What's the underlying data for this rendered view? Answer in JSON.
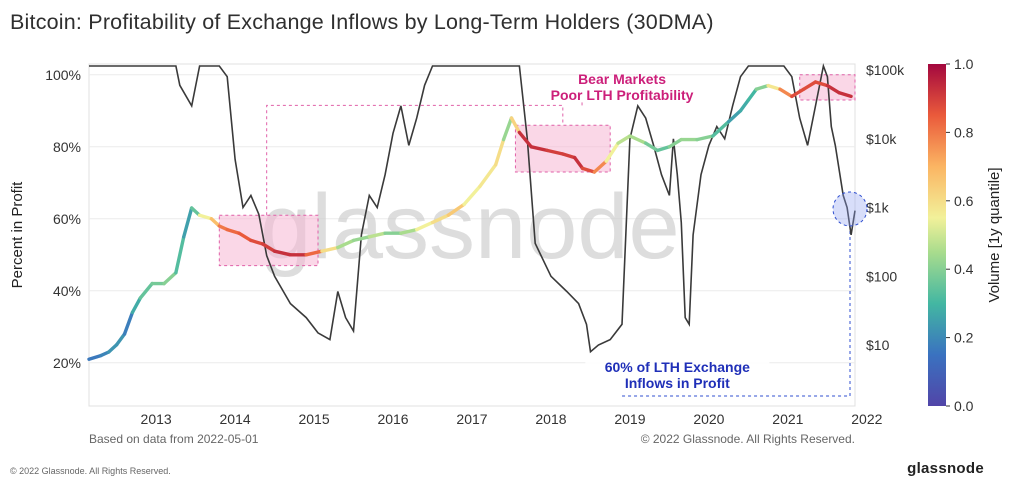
{
  "chart_data": {
    "type": "line",
    "title": "Bitcoin: Profitability of Exchange Inflows by Long-Term Holders (30DMA)",
    "ylabel": "Percent in Profit",
    "y_ticks": [
      "100%",
      "80%",
      "60%",
      "40%",
      "20%"
    ],
    "y_tick_values": [
      100,
      80,
      60,
      40,
      20
    ],
    "ylim": [
      8,
      103
    ],
    "y2_ticks": [
      "$100k",
      "$10k",
      "$1k",
      "$100",
      "$10"
    ],
    "y2_tick_values": [
      100000,
      10000,
      1000,
      100,
      10
    ],
    "y2_scale": "log",
    "x_ticks": [
      "2013",
      "2014",
      "2015",
      "2016",
      "2017",
      "2018",
      "2019",
      "2020",
      "2021",
      "2022"
    ],
    "x_tick_values": [
      2013,
      2014,
      2015,
      2016,
      2017,
      2018,
      2019,
      2020,
      2021,
      2022
    ],
    "xlim": [
      2012.65,
      2022.35
    ],
    "colorbar": {
      "label": "Volume [1y quantile]",
      "ticks": [
        "1.0",
        "0.8",
        "0.6",
        "0.4",
        "0.2",
        "0.0"
      ],
      "tick_values": [
        1.0,
        0.8,
        0.6,
        0.4,
        0.2,
        0.0
      ]
    },
    "series": [
      {
        "name": "",
        "axis": "left",
        "color_by": "Volume [1y quantile]",
        "points": [
          [
            2012.65,
            21,
            0.15
          ],
          [
            2012.8,
            22,
            0.18
          ],
          [
            2012.9,
            23,
            0.2
          ],
          [
            2013.0,
            25,
            0.25
          ],
          [
            2013.1,
            28,
            0.2
          ],
          [
            2013.2,
            34,
            0.15
          ],
          [
            2013.3,
            38,
            0.4
          ],
          [
            2013.45,
            42,
            0.3
          ],
          [
            2013.6,
            42,
            0.45
          ],
          [
            2013.75,
            45,
            0.35
          ],
          [
            2013.85,
            55,
            0.3
          ],
          [
            2013.95,
            63,
            0.2
          ],
          [
            2014.05,
            61,
            0.5
          ],
          [
            2014.2,
            60,
            0.6
          ],
          [
            2014.3,
            58,
            0.75
          ],
          [
            2014.4,
            57,
            0.85
          ],
          [
            2014.55,
            56,
            0.8
          ],
          [
            2014.7,
            54,
            0.9
          ],
          [
            2014.85,
            53,
            0.85
          ],
          [
            2015.0,
            51,
            0.95
          ],
          [
            2015.2,
            50,
            0.9
          ],
          [
            2015.4,
            50,
            0.95
          ],
          [
            2015.6,
            51,
            0.7
          ],
          [
            2015.8,
            52,
            0.5
          ],
          [
            2016.0,
            54,
            0.4
          ],
          [
            2016.2,
            55,
            0.45
          ],
          [
            2016.4,
            56,
            0.5
          ],
          [
            2016.6,
            56,
            0.3
          ],
          [
            2016.8,
            57,
            0.6
          ],
          [
            2017.0,
            59,
            0.5
          ],
          [
            2017.2,
            61,
            0.7
          ],
          [
            2017.4,
            64,
            0.6
          ],
          [
            2017.6,
            69,
            0.5
          ],
          [
            2017.8,
            75,
            0.65
          ],
          [
            2017.9,
            82,
            0.55
          ],
          [
            2018.0,
            88,
            0.3
          ],
          [
            2018.1,
            84,
            0.95
          ],
          [
            2018.25,
            80,
            0.9
          ],
          [
            2018.45,
            79,
            0.95
          ],
          [
            2018.65,
            78,
            0.85
          ],
          [
            2018.8,
            77,
            0.95
          ],
          [
            2018.9,
            74,
            0.9
          ],
          [
            2019.05,
            73,
            0.85
          ],
          [
            2019.2,
            76,
            0.7
          ],
          [
            2019.35,
            81,
            0.4
          ],
          [
            2019.5,
            83,
            0.55
          ],
          [
            2019.7,
            81,
            0.35
          ],
          [
            2019.85,
            79,
            0.4
          ],
          [
            2020.0,
            80,
            0.3
          ],
          [
            2020.15,
            82,
            0.5
          ],
          [
            2020.35,
            82,
            0.35
          ],
          [
            2020.55,
            83,
            0.45
          ],
          [
            2020.75,
            87,
            0.2
          ],
          [
            2020.9,
            90,
            0.3
          ],
          [
            2021.0,
            93,
            0.25
          ],
          [
            2021.1,
            96,
            0.35
          ],
          [
            2021.25,
            97,
            0.45
          ],
          [
            2021.4,
            96,
            0.7
          ],
          [
            2021.55,
            94,
            0.85
          ],
          [
            2021.7,
            96,
            0.9
          ],
          [
            2021.85,
            98,
            0.85
          ],
          [
            2022.0,
            97,
            0.9
          ],
          [
            2022.15,
            95,
            0.95
          ],
          [
            2022.3,
            94,
            0.9
          ]
        ]
      },
      {
        "name": "",
        "axis": "right",
        "color": "#3a3a3a",
        "points": [
          [
            2012.65,
            300000
          ],
          [
            2012.8,
            250000
          ],
          [
            2012.95,
            320000
          ],
          [
            2013.1,
            500000
          ],
          [
            2013.3,
            500000
          ],
          [
            2013.5,
            500000
          ],
          [
            2013.75,
            500000
          ],
          [
            2013.8,
            60000
          ],
          [
            2013.95,
            30000
          ],
          [
            2014.05,
            450000
          ],
          [
            2014.3,
            450000
          ],
          [
            2014.4,
            80000
          ],
          [
            2014.5,
            5000
          ],
          [
            2014.6,
            1000
          ],
          [
            2014.7,
            1500
          ],
          [
            2014.8,
            800
          ],
          [
            2014.9,
            200
          ],
          [
            2015.0,
            100
          ],
          [
            2015.2,
            40
          ],
          [
            2015.4,
            25
          ],
          [
            2015.55,
            15
          ],
          [
            2015.7,
            12
          ],
          [
            2015.8,
            60
          ],
          [
            2015.9,
            25
          ],
          [
            2016.0,
            16
          ],
          [
            2016.1,
            400
          ],
          [
            2016.2,
            1500
          ],
          [
            2016.3,
            1000
          ],
          [
            2016.4,
            3000
          ],
          [
            2016.5,
            12000
          ],
          [
            2016.6,
            30000
          ],
          [
            2016.7,
            8000
          ],
          [
            2016.8,
            20000
          ],
          [
            2016.9,
            60000
          ],
          [
            2017.0,
            150000
          ],
          [
            2017.2,
            300000
          ],
          [
            2017.4,
            450000
          ],
          [
            2017.6,
            500000
          ],
          [
            2017.9,
            500000
          ],
          [
            2018.1,
            400000
          ],
          [
            2018.2,
            10000
          ],
          [
            2018.3,
            300
          ],
          [
            2018.5,
            100
          ],
          [
            2018.7,
            60
          ],
          [
            2018.85,
            40
          ],
          [
            2018.95,
            20
          ],
          [
            2019.0,
            8
          ],
          [
            2019.1,
            10
          ],
          [
            2019.25,
            12
          ],
          [
            2019.4,
            20
          ],
          [
            2019.5,
            10000
          ],
          [
            2019.6,
            30000
          ],
          [
            2019.7,
            20000
          ],
          [
            2019.8,
            8000
          ],
          [
            2019.9,
            3000
          ],
          [
            2020.0,
            1500
          ],
          [
            2020.05,
            10000
          ],
          [
            2020.1,
            3000
          ],
          [
            2020.15,
            600
          ],
          [
            2020.2,
            25
          ],
          [
            2020.25,
            20
          ],
          [
            2020.3,
            400
          ],
          [
            2020.4,
            3000
          ],
          [
            2020.5,
            8000
          ],
          [
            2020.6,
            15000
          ],
          [
            2020.7,
            10000
          ],
          [
            2020.8,
            30000
          ],
          [
            2020.9,
            80000
          ],
          [
            2021.0,
            150000
          ],
          [
            2021.15,
            200000
          ],
          [
            2021.35,
            300000
          ],
          [
            2021.45,
            200000
          ],
          [
            2021.55,
            80000
          ],
          [
            2021.65,
            20000
          ],
          [
            2021.75,
            8000
          ],
          [
            2021.85,
            30000
          ],
          [
            2021.95,
            250000
          ],
          [
            2022.0,
            80000
          ],
          [
            2022.05,
            15000
          ],
          [
            2022.1,
            8000
          ],
          [
            2022.2,
            1500
          ],
          [
            2022.25,
            1000
          ],
          [
            2022.3,
            400
          ],
          [
            2022.35,
            900
          ]
        ]
      }
    ],
    "annotations": [
      {
        "text_lines": [
          "Bear Markets",
          "Poor LTH Profitability"
        ],
        "color": "#cc1f7a"
      },
      {
        "text_lines": [
          "60% of LTH Exchange",
          "Inflows in Profit"
        ],
        "color": "#1f2fb8"
      }
    ],
    "watermark": "glassnode",
    "source_note": "Based on data from 2022-05-01",
    "copyright_chart": "© 2022 Glassnode. All Rights Reserved."
  },
  "footer": {
    "copyright": "© 2022 Glassnode. All Rights Reserved.",
    "brand": "glassnode"
  }
}
